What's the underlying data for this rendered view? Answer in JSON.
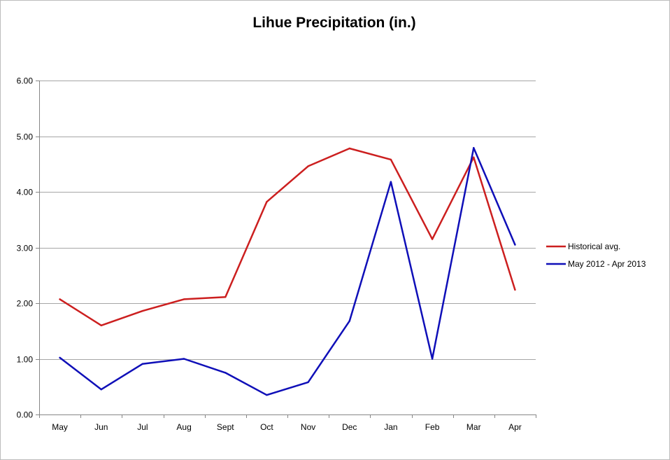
{
  "chart_data": {
    "type": "line",
    "title": "Lihue Precipitation (in.)",
    "xlabel": "",
    "ylabel": "",
    "categories": [
      "May",
      "Jun",
      "Jul",
      "Aug",
      "Sept",
      "Oct",
      "Nov",
      "Dec",
      "Jan",
      "Feb",
      "Mar",
      "Apr"
    ],
    "ylim": [
      0,
      6
    ],
    "yticks": [
      "0.00",
      "1.00",
      "2.00",
      "3.00",
      "4.00",
      "5.00",
      "6.00"
    ],
    "grid": true,
    "legend_position": "right",
    "series": [
      {
        "name": "Historical avg.",
        "color": "#cc1f1f",
        "values": [
          2.07,
          1.6,
          1.86,
          2.07,
          2.11,
          3.82,
          4.46,
          4.78,
          4.58,
          3.15,
          4.62,
          2.24
        ]
      },
      {
        "name": "May 2012 - Apr 2013",
        "color": "#0f0fb8",
        "values": [
          1.02,
          0.45,
          0.91,
          1.0,
          0.75,
          0.35,
          0.58,
          1.68,
          4.18,
          1.0,
          4.79,
          3.05
        ]
      }
    ]
  }
}
